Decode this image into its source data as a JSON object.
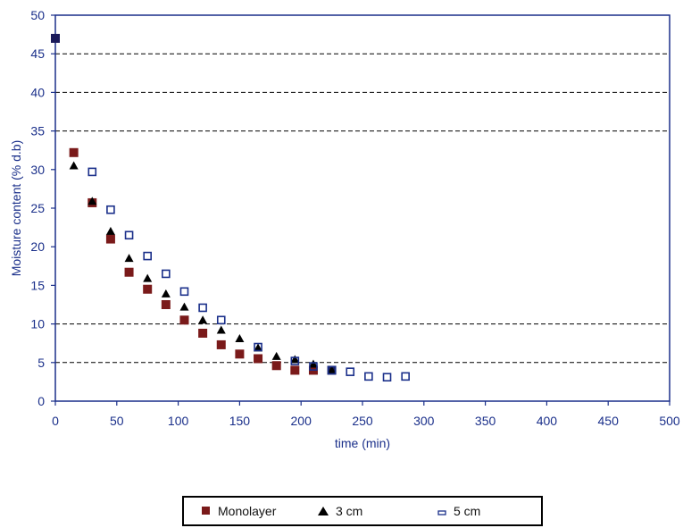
{
  "chart_data": {
    "type": "scatter",
    "xlabel": "time (min)",
    "ylabel": "Moisture content (% d.b)",
    "xlim": [
      0,
      500
    ],
    "ylim": [
      0,
      50
    ],
    "x_ticks": [
      0,
      50,
      100,
      150,
      200,
      250,
      300,
      350,
      400,
      450,
      500
    ],
    "y_ticks": [
      0,
      5,
      10,
      15,
      20,
      25,
      30,
      35,
      40,
      45,
      50
    ],
    "grid": "horizontal dashed at 5, 10, 35, 40, 45",
    "legend_position": "bottom",
    "colors": {
      "monolayer": "#7a1a1a",
      "three_cm": "#000000",
      "five_cm": "#1a2f8a",
      "axis": "#1a2f8a"
    },
    "series": [
      {
        "name": "Monolayer",
        "marker": "square",
        "points": [
          [
            0,
            47
          ],
          [
            15,
            32.2
          ],
          [
            30,
            25.7
          ],
          [
            45,
            21
          ],
          [
            60,
            16.7
          ],
          [
            75,
            14.5
          ],
          [
            90,
            12.5
          ],
          [
            105,
            10.5
          ],
          [
            120,
            8.8
          ],
          [
            135,
            7.3
          ],
          [
            150,
            6.1
          ],
          [
            165,
            5.5
          ],
          [
            180,
            4.6
          ],
          [
            195,
            4
          ],
          [
            210,
            4
          ],
          [
            225,
            4
          ]
        ]
      },
      {
        "name": "3 cm",
        "marker": "triangle",
        "points": [
          [
            15,
            30.5
          ],
          [
            30,
            25.9
          ],
          [
            45,
            22
          ],
          [
            60,
            18.5
          ],
          [
            75,
            15.9
          ],
          [
            90,
            13.9
          ],
          [
            105,
            12.2
          ],
          [
            120,
            10.5
          ],
          [
            135,
            9.2
          ],
          [
            150,
            8.1
          ],
          [
            165,
            6.9
          ],
          [
            180,
            5.8
          ],
          [
            195,
            5.4
          ],
          [
            210,
            4.8
          ],
          [
            225,
            4
          ]
        ]
      },
      {
        "name": "5 cm",
        "marker": "open-square",
        "points": [
          [
            30,
            29.7
          ],
          [
            45,
            24.8
          ],
          [
            60,
            21.5
          ],
          [
            75,
            18.8
          ],
          [
            90,
            16.5
          ],
          [
            105,
            14.2
          ],
          [
            120,
            12.1
          ],
          [
            135,
            10.5
          ],
          [
            165,
            7
          ],
          [
            195,
            5.2
          ],
          [
            210,
            4.5
          ],
          [
            225,
            4
          ],
          [
            240,
            3.8
          ],
          [
            255,
            3.2
          ],
          [
            270,
            3.1
          ],
          [
            285,
            3.2
          ]
        ]
      }
    ]
  }
}
